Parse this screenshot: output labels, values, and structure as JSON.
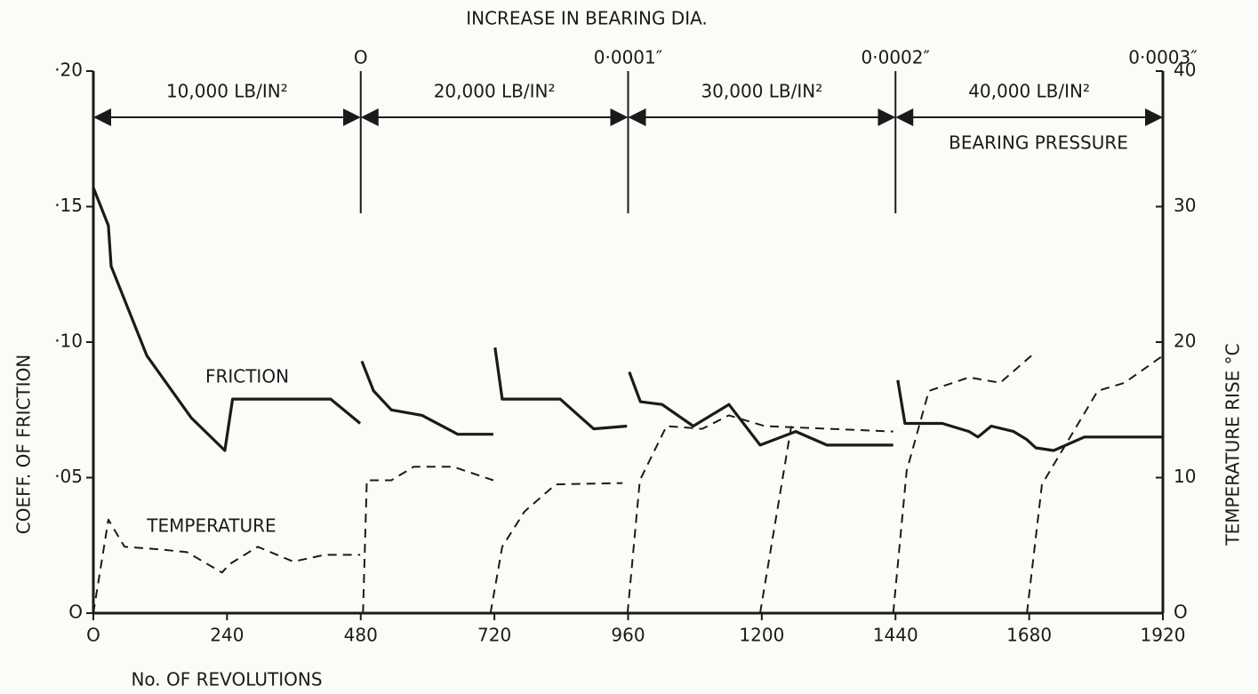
{
  "chart_data": {
    "type": "line",
    "title": "INCREASE IN BEARING DIA.",
    "x_label": "No. OF REVOLUTIONS",
    "y_label": "COEFF. OF FRICTION",
    "y2_label": "TEMPERATURE RISE °C",
    "xlim": [
      0,
      1920
    ],
    "xticks": [
      {
        "value": 0,
        "label": "O"
      },
      240,
      480,
      720,
      960,
      1200,
      1440,
      1680,
      1920
    ],
    "ylim": [
      0,
      0.2
    ],
    "yticks": [
      {
        "value": 0,
        "label": "O"
      },
      {
        "value": 0.05,
        "label": "·05"
      },
      {
        "value": 0.1,
        "label": "·10"
      },
      {
        "value": 0.15,
        "label": "·15"
      },
      {
        "value": 0.2,
        "label": "·20"
      }
    ],
    "y2lim": [
      0,
      40
    ],
    "y2ticks": [
      {
        "value": 0,
        "label": "O"
      },
      10,
      20,
      30,
      40
    ],
    "dia_annotations": [
      {
        "x": 480,
        "text": "O"
      },
      {
        "x": 960,
        "text": "0·0001″"
      },
      {
        "x": 1440,
        "text": "0·0002″"
      },
      {
        "x": 1920,
        "text": "0·0003″"
      }
    ],
    "pressure_regions": [
      {
        "from": 0,
        "to": 480,
        "text": "10,000 LB/IN²"
      },
      {
        "from": 480,
        "to": 960,
        "text": "20,000 LB/IN²"
      },
      {
        "from": 960,
        "to": 1440,
        "text": "30,000 LB/IN²"
      },
      {
        "from": 1440,
        "to": 1920,
        "text": "40,000 LB/IN²"
      }
    ],
    "pressure_label": "BEARING PRESSURE",
    "series": [
      {
        "name": "FRICTION",
        "color": "#1a1a1a",
        "dashed": false,
        "x": [
          0,
          27,
          32,
          96,
          176,
          236,
          250,
          426,
          479,
          null,
          482,
          503,
          535,
          590,
          654,
          718,
          null,
          721,
          734,
          838,
          898,
          958,
          null,
          962,
          982,
          1021,
          1077,
          1141,
          1197,
          1261,
          1317,
          1436,
          null,
          1444,
          1457,
          1524,
          1572,
          1588,
          1612,
          1652,
          1676,
          1692,
          1724,
          1779,
          1920
        ],
        "values": [
          0.157,
          0.143,
          0.128,
          0.095,
          0.072,
          0.06,
          0.079,
          0.079,
          0.07,
          null,
          0.093,
          0.082,
          0.075,
          0.073,
          0.066,
          0.066,
          null,
          0.098,
          0.079,
          0.079,
          0.068,
          0.069,
          null,
          0.089,
          0.078,
          0.077,
          0.069,
          0.077,
          0.062,
          0.067,
          0.062,
          0.062,
          null,
          0.086,
          0.07,
          0.07,
          0.067,
          0.065,
          0.069,
          0.067,
          0.064,
          0.061,
          0.06,
          0.065,
          0.065
        ]
      },
      {
        "name": "TEMPERATURE",
        "color": "#1a1a1a",
        "dashed": true,
        "axis": "y2",
        "x": [
          0,
          27,
          56,
          120,
          168,
          231,
          244,
          295,
          359,
          415,
          479,
          null,
          484,
          491,
          535,
          575,
          646,
          718,
          null,
          713,
          734,
          774,
          830,
          950,
          null,
          959,
          981,
          1029,
          1093,
          1141,
          1205,
          1436,
          null,
          1197,
          1253,
          null,
          1436,
          1460,
          1500,
          1572,
          1628,
          1684,
          null,
          1676,
          1703,
          1803,
          1851,
          1920
        ],
        "values": [
          0,
          6.9,
          4.9,
          4.7,
          4.5,
          3.0,
          3.6,
          4.9,
          3.8,
          4.3,
          4.3,
          null,
          0,
          9.8,
          9.8,
          10.8,
          10.8,
          9.8,
          null,
          0,
          4.9,
          7.5,
          9.5,
          9.6,
          null,
          0,
          9.8,
          13.8,
          13.6,
          14.6,
          13.8,
          13.4,
          null,
          0,
          13.8,
          null,
          0,
          10.5,
          16.4,
          17.4,
          17.0,
          19.0,
          null,
          0,
          9.5,
          16.4,
          17.0,
          19.0
        ]
      }
    ]
  }
}
